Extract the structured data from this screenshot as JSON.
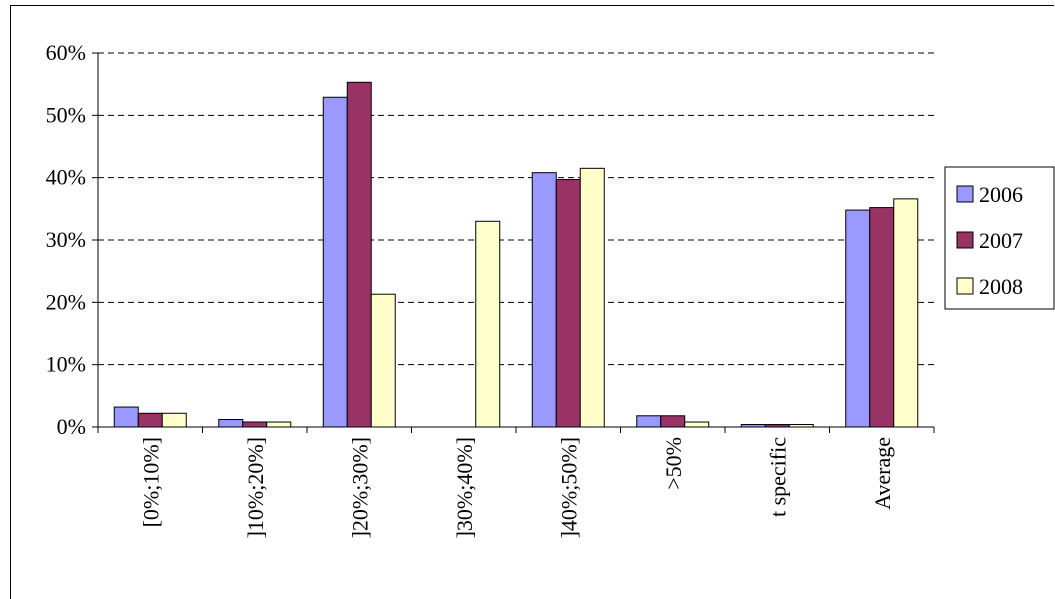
{
  "chart_data": {
    "type": "bar",
    "title": "",
    "xlabel": "",
    "ylabel": "",
    "categories": [
      "[0%;10%]",
      "]10%;20%]",
      "]20%;30%]",
      "]30%;40%]",
      "]40%;50%]",
      ">50%",
      "t specific",
      "Average"
    ],
    "series": [
      {
        "name": "2006",
        "color": "#9999ff",
        "values": [
          3.2,
          1.2,
          52.9,
          0,
          40.8,
          1.8,
          0.4,
          34.8
        ]
      },
      {
        "name": "2007",
        "color": "#993366",
        "values": [
          2.2,
          0.8,
          55.3,
          0,
          39.7,
          1.8,
          0.4,
          35.2
        ]
      },
      {
        "name": "2008",
        "color": "#ffffcc",
        "values": [
          2.2,
          0.8,
          21.3,
          33.0,
          41.5,
          0.8,
          0.4,
          36.6
        ]
      }
    ],
    "ylim": [
      0,
      60
    ],
    "yticks": [
      0,
      10,
      20,
      30,
      40,
      50,
      60
    ],
    "ytick_labels": [
      "0%",
      "10%",
      "20%",
      "30%",
      "40%",
      "50%",
      "60%"
    ],
    "grid": true,
    "legend_position": "right"
  }
}
